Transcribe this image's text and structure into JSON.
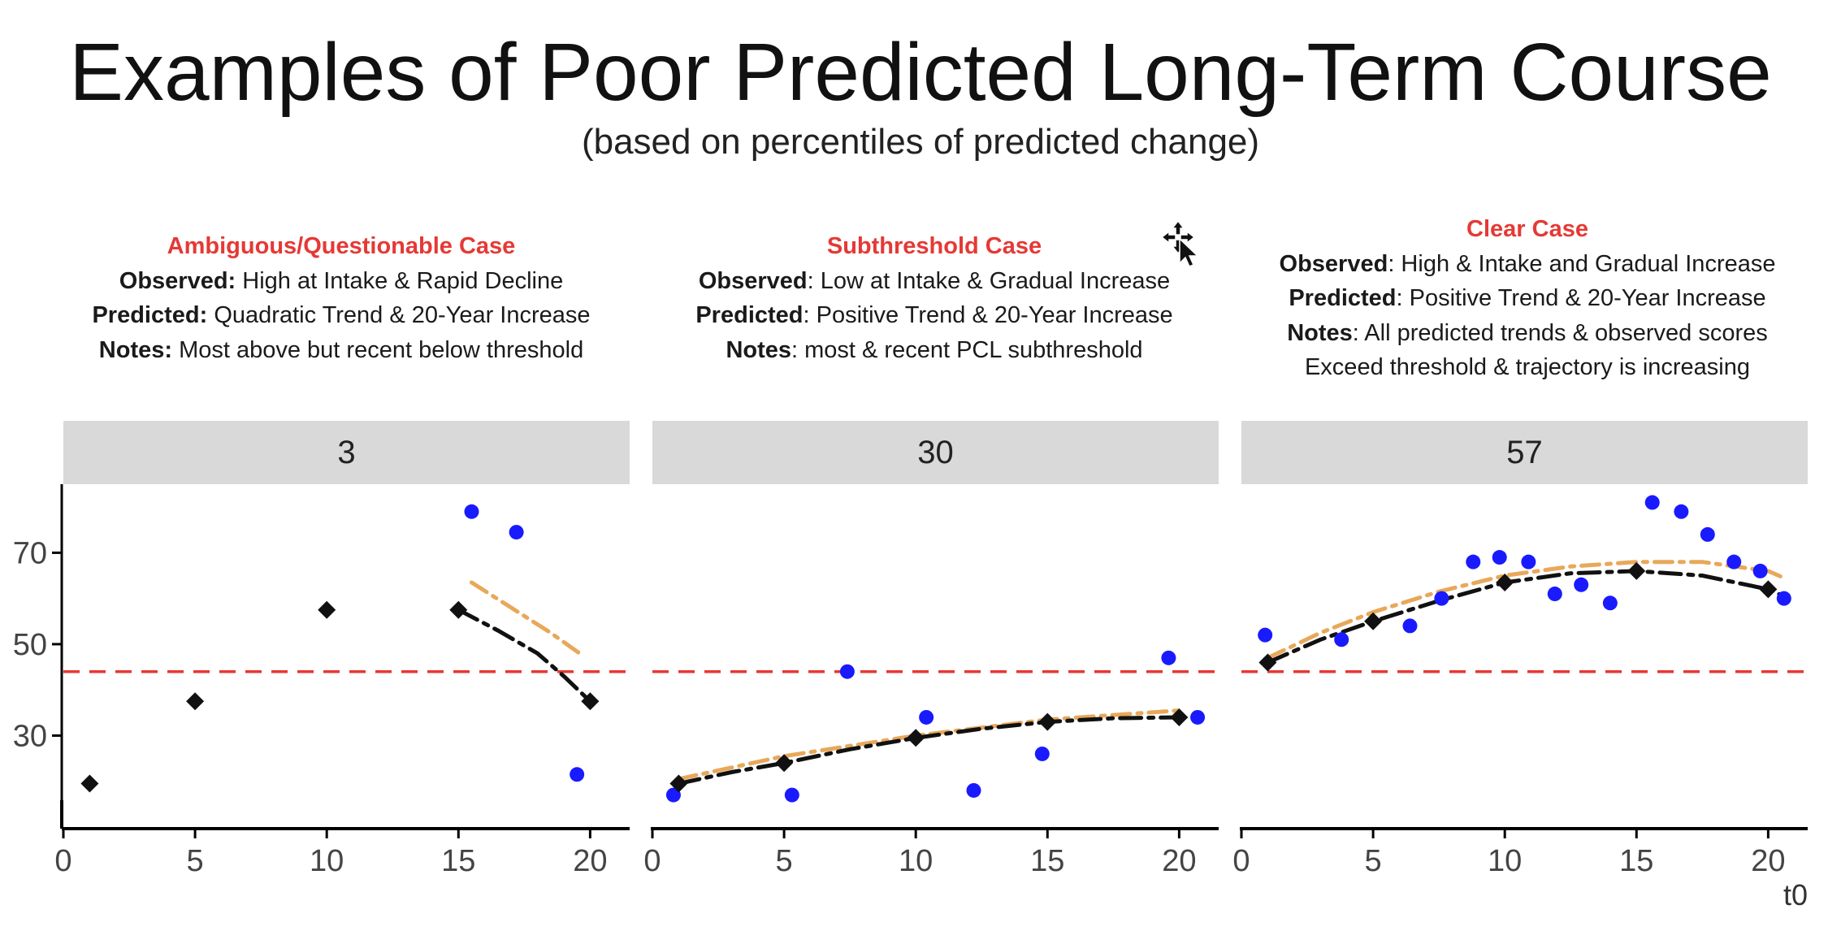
{
  "title": "Examples of Poor Predicted Long-Term Course",
  "subtitle": "(based on percentiles of predicted change)",
  "cases": [
    {
      "heading": "Ambiguous/Questionable Case",
      "lines": [
        {
          "label": "Observed:",
          "text": " High at Intake & Rapid Decline"
        },
        {
          "label": "Predicted:",
          "text": " Quadratic Trend & 20-Year Increase"
        },
        {
          "label": "Notes:",
          "text": " Most above but recent below threshold"
        }
      ]
    },
    {
      "heading": "Subthreshold Case",
      "lines": [
        {
          "label": "Observed",
          "text": ": Low at Intake & Gradual Increase"
        },
        {
          "label": "Predicted",
          "text": ": Positive Trend & 20-Year Increase"
        },
        {
          "label": "Notes",
          "text": ": most & recent PCL subthreshold"
        }
      ]
    },
    {
      "heading": "Clear Case",
      "lines": [
        {
          "label": "Observed",
          "text": ": High & Intake and Gradual Increase"
        },
        {
          "label": "Predicted",
          "text": ": Positive Trend & 20-Year Increase"
        },
        {
          "label": "Notes",
          "text": ": All predicted trends & observed scores"
        },
        {
          "label": "",
          "text": "Exceed threshold & trajectory is increasing"
        }
      ]
    }
  ],
  "colors": {
    "case_heading": "#e53935",
    "strip_bg": "#d9d9d9",
    "threshold": "#e53935",
    "observed_points": "#1a1aff",
    "predicted_points": "#111111",
    "predicted_line": "#111111",
    "trend_line": "#e8a85a"
  },
  "chart_data": {
    "type": "scatter",
    "facets": [
      "3",
      "30",
      "57"
    ],
    "xlim": [
      0,
      21.5
    ],
    "ylim": [
      10,
      85
    ],
    "x_ticks": [
      0,
      5,
      10,
      15,
      20
    ],
    "y_ticks": [
      30,
      50,
      70
    ],
    "x_axis_fragment": "t0",
    "threshold": 44,
    "panels": [
      {
        "facet": "3",
        "observed": [
          [
            15.5,
            79
          ],
          [
            17.2,
            74.5
          ],
          [
            19.5,
            21.5
          ]
        ],
        "predicted_points": [
          [
            1,
            19.5
          ],
          [
            5,
            37.5
          ],
          [
            10,
            57.5
          ],
          [
            15,
            57.5
          ],
          [
            20,
            37.5
          ]
        ],
        "predicted_line": [
          [
            15,
            57.5
          ],
          [
            16.5,
            53
          ],
          [
            18,
            48
          ],
          [
            19,
            43
          ],
          [
            20,
            37.5
          ]
        ],
        "trend_line": [
          [
            15.5,
            63.5
          ],
          [
            17,
            58
          ],
          [
            18.5,
            52.5
          ],
          [
            19.6,
            48
          ]
        ]
      },
      {
        "facet": "30",
        "observed": [
          [
            0.8,
            17
          ],
          [
            5.3,
            17
          ],
          [
            7.4,
            44
          ],
          [
            10.4,
            34
          ],
          [
            12.2,
            18
          ],
          [
            14.8,
            26
          ],
          [
            19.6,
            47
          ],
          [
            20.7,
            34
          ]
        ],
        "predicted_points": [
          [
            1,
            19.5
          ],
          [
            5,
            24
          ],
          [
            10,
            29.5
          ],
          [
            15,
            33
          ],
          [
            20,
            34
          ]
        ],
        "predicted_line": [
          [
            1,
            19.5
          ],
          [
            3,
            22
          ],
          [
            5,
            24
          ],
          [
            7.5,
            27
          ],
          [
            10,
            29.5
          ],
          [
            12.5,
            31.5
          ],
          [
            15,
            33
          ],
          [
            17.5,
            33.8
          ],
          [
            20,
            34
          ]
        ],
        "trend_line": [
          [
            1,
            20.5
          ],
          [
            5,
            25.5
          ],
          [
            10,
            30
          ],
          [
            15,
            33.5
          ],
          [
            20,
            35.5
          ]
        ]
      },
      {
        "facet": "57",
        "observed": [
          [
            0.9,
            52
          ],
          [
            3.8,
            51
          ],
          [
            6.4,
            54
          ],
          [
            7.6,
            60
          ],
          [
            8.8,
            68
          ],
          [
            9.8,
            69
          ],
          [
            10.9,
            68
          ],
          [
            11.9,
            61
          ],
          [
            12.9,
            63
          ],
          [
            14.0,
            59
          ],
          [
            15.6,
            81
          ],
          [
            16.7,
            79
          ],
          [
            17.7,
            74
          ],
          [
            18.7,
            68
          ],
          [
            19.7,
            66
          ],
          [
            20.6,
            60
          ]
        ],
        "predicted_points": [
          [
            1,
            46
          ],
          [
            5,
            55
          ],
          [
            10,
            63.5
          ],
          [
            15,
            66
          ],
          [
            20,
            62
          ]
        ],
        "predicted_line": [
          [
            1,
            46
          ],
          [
            3,
            51
          ],
          [
            5,
            55
          ],
          [
            7.5,
            59.5
          ],
          [
            10,
            63.5
          ],
          [
            12.5,
            65.5
          ],
          [
            15,
            66
          ],
          [
            17.5,
            65
          ],
          [
            20,
            62
          ],
          [
            20.6,
            60.5
          ]
        ],
        "trend_line": [
          [
            1,
            47
          ],
          [
            3,
            52.5
          ],
          [
            5,
            57
          ],
          [
            7.5,
            61.5
          ],
          [
            10,
            65
          ],
          [
            12.5,
            67
          ],
          [
            15,
            68
          ],
          [
            17.5,
            68
          ],
          [
            20,
            66
          ],
          [
            20.6,
            64.5
          ]
        ]
      }
    ]
  }
}
